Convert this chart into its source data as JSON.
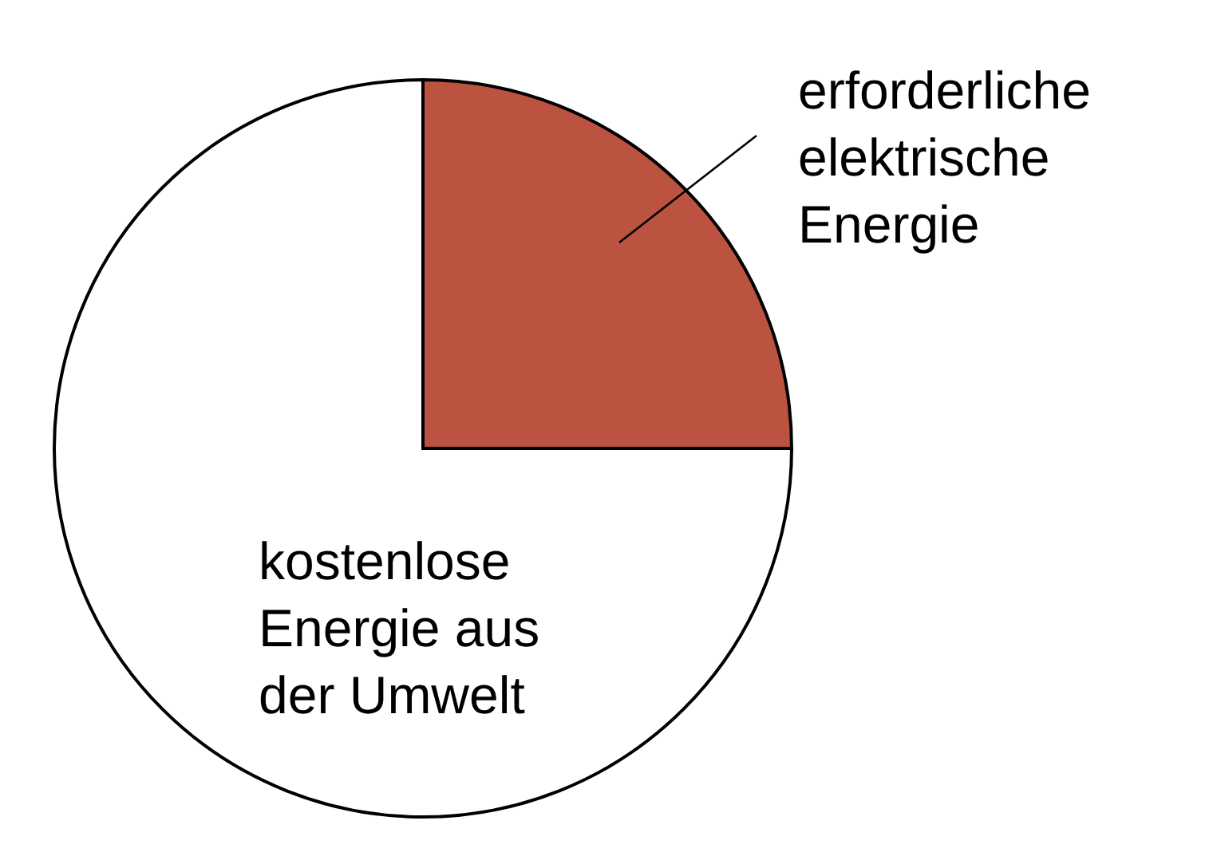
{
  "chart_data": {
    "type": "pie",
    "categories": [
      "erforderliche\nelektrische\nEnergie",
      "kostenlose\nEnergie aus\nder Umwelt"
    ],
    "values": [
      25,
      75
    ],
    "colors": [
      "#bc5340",
      "#ffffff"
    ]
  }
}
